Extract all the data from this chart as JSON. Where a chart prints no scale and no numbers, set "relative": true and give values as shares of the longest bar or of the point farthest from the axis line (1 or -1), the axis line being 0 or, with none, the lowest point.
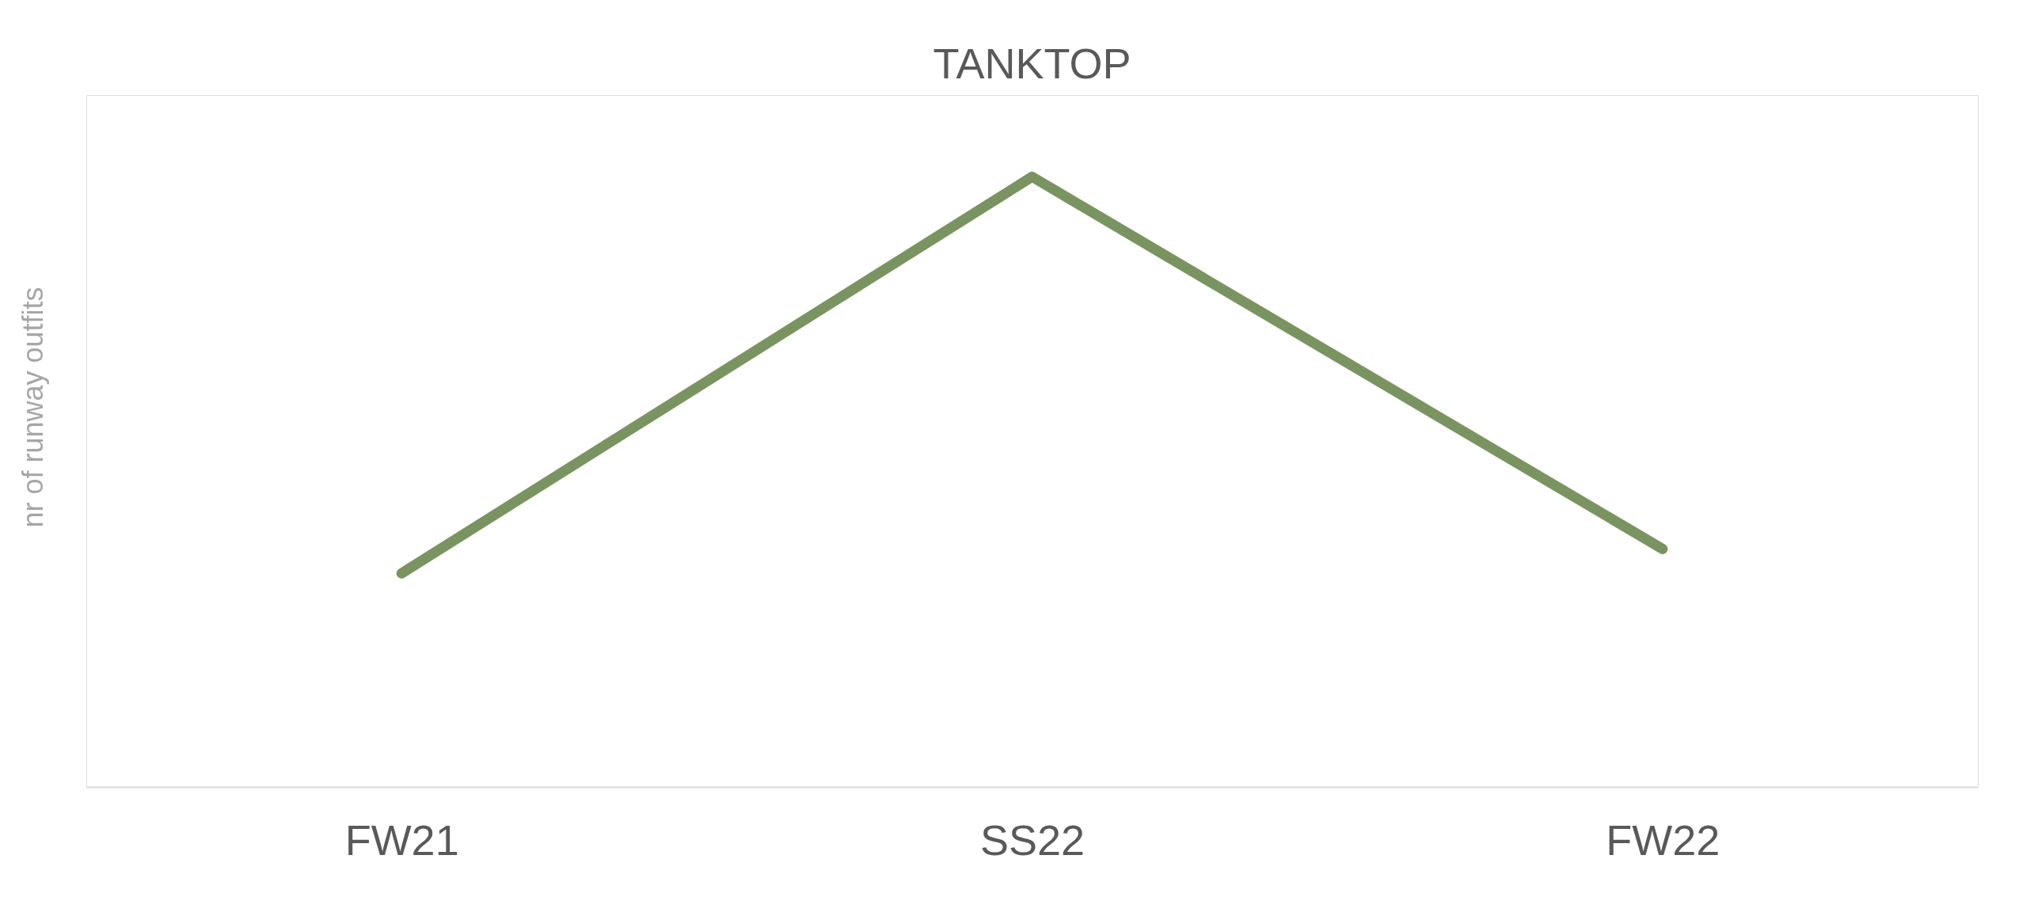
{
  "chart_data": {
    "type": "line",
    "title": "TANKTOP",
    "ylabel": "nr of runway outfits",
    "categories": [
      "FW21",
      "SS22",
      "FW22"
    ],
    "series": [
      {
        "color": "#7a9461",
        "values": [
          0.35,
          1,
          0.39
        ]
      }
    ],
    "relative": true,
    "grid": false,
    "marker": "none",
    "line_style": "solid"
  }
}
